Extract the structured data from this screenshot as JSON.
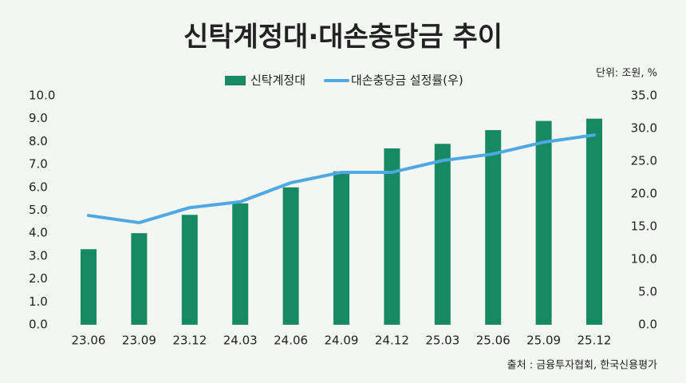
{
  "chart_data": {
    "type": "bar-line",
    "title": "신탁계정대·대손충당금 추이",
    "unit_note": "단위: 조원, %",
    "source": "출처 : 금융투자협회, 한국신용평가",
    "categories": [
      "23.06",
      "23.09",
      "23.12",
      "24.03",
      "24.06",
      "24.09",
      "24.12",
      "25.03",
      "25.06",
      "25.09",
      "25.12"
    ],
    "series": [
      {
        "name": "신탁계정대",
        "type": "bar",
        "color": "#178a63",
        "values": [
          3.3,
          4.0,
          4.8,
          5.3,
          6.0,
          6.7,
          7.7,
          7.9,
          8.5,
          8.9,
          9.0
        ]
      },
      {
        "name": "대손충당금 설정률(우)",
        "type": "line",
        "axis": "y2",
        "color": "#4ea9e2",
        "values": [
          16.7,
          15.6,
          17.9,
          18.8,
          21.7,
          23.3,
          23.3,
          25.1,
          26.1,
          27.9,
          29.0
        ]
      }
    ],
    "ylim": [
      0,
      10
    ],
    "yticks": [
      {
        "value": 0,
        "label": "0.0"
      },
      {
        "value": 1,
        "label": "1.0"
      },
      {
        "value": 2,
        "label": "2.0"
      },
      {
        "value": 3,
        "label": "3.0"
      },
      {
        "value": 4,
        "label": "4.0"
      },
      {
        "value": 5,
        "label": "5.0"
      },
      {
        "value": 6,
        "label": "6.0"
      },
      {
        "value": 7,
        "label": "7.0"
      },
      {
        "value": 8,
        "label": "8.0"
      },
      {
        "value": 9,
        "label": "9.0"
      },
      {
        "value": 10,
        "label": "10.0"
      }
    ],
    "y2lim": [
      0,
      35
    ],
    "y2ticks": [
      {
        "value": 0,
        "label": "0.0"
      },
      {
        "value": 5,
        "label": "5.0"
      },
      {
        "value": 10,
        "label": "10.0"
      },
      {
        "value": 15,
        "label": "15.0"
      },
      {
        "value": 20,
        "label": "20.0"
      },
      {
        "value": 25,
        "label": "25.0"
      },
      {
        "value": 30,
        "label": "30.0"
      },
      {
        "value": 35,
        "label": "35.0"
      }
    ],
    "grid": false
  }
}
